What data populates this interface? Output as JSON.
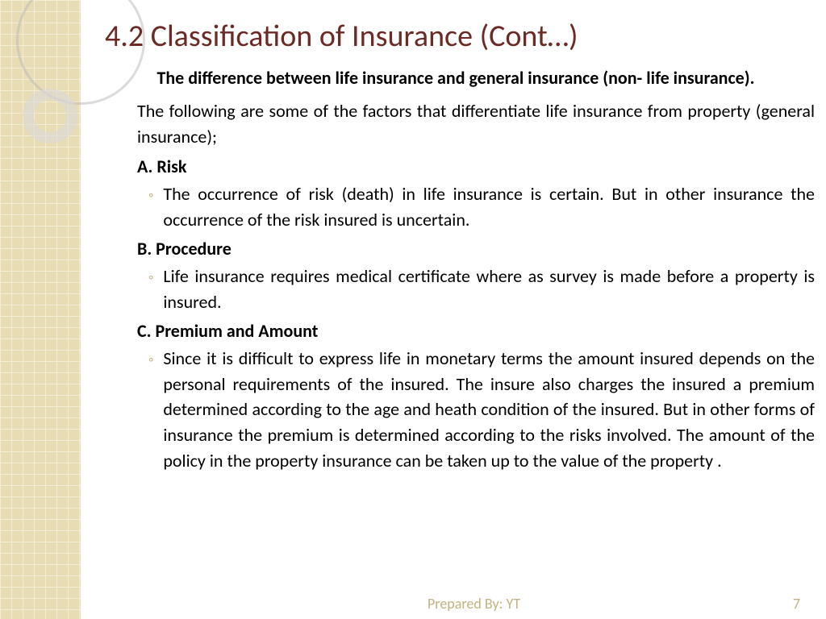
{
  "slide": {
    "title": "4.2 Classification of Insurance (Cont…)",
    "subtitle": "The difference between life insurance and general insurance (non- life insurance).",
    "intro": "The following are some of the factors that differentiate life insurance from property (general insurance);",
    "factors": [
      {
        "label": "A. Risk",
        "text": "The occurrence of risk (death) in life insurance is certain. But in other insurance the occurrence of the risk insured is uncertain."
      },
      {
        "label": "B. Procedure",
        "text": "Life insurance requires medical certificate where as survey is made before a property is insured."
      },
      {
        "label": "C. Premium and Amount",
        "text": "Since it is difficult to express life in monetary terms the amount insured depends on the personal requirements of the insured. The insure also charges the insured a premium determined according to the age and heath condition of the insured. But in other forms of insurance the premium is determined according to the risks involved. The amount of the policy in the property insurance can be taken up to the value of the property ."
      }
    ]
  },
  "footer": {
    "byline": "Prepared By: YT",
    "page": "7"
  },
  "style": {
    "title_color": "#6b2a24",
    "side_pattern_bg": "#e4d6a8",
    "side_pattern_line": "#f2ead0",
    "bullet_color": "#c2b280",
    "footer_color": "#c2b280",
    "background": "#ffffff"
  }
}
